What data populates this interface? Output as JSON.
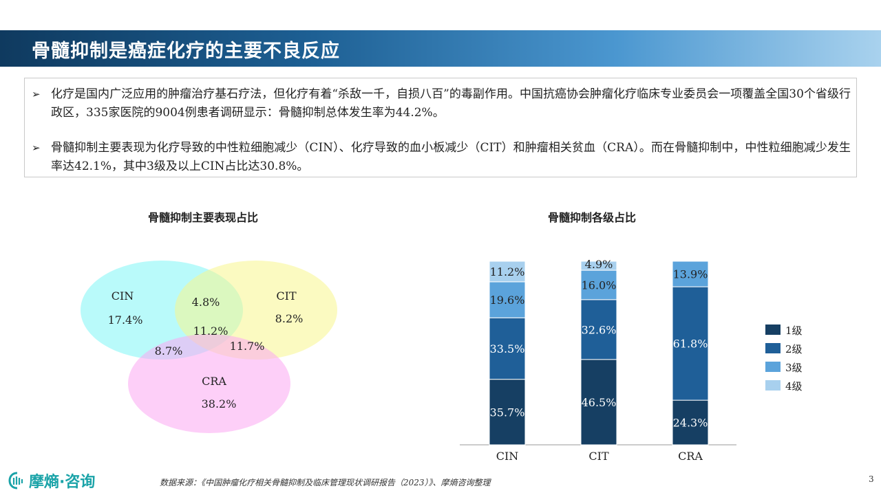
{
  "header": {
    "title": "骨髓抑制是癌症化疗的主要不良反应"
  },
  "bullets": [
    "化疗是国内广泛应用的肿瘤治疗基石疗法，但化疗有着“杀敌一千，自损八百”的毒副作用。中国抗癌协会肿瘤化疗临床专业委员会一项覆盖全国30个省级行政区，335家医院的9004例患者调研显示：骨髓抑制总体发生率为44.2%。",
    "骨髓抑制主要表现为化疗导致的中性粒细胞减少（CIN）、化疗导致的血小板减少（CIT）和肿瘤相关贫血（CRA）。而在骨髓抑制中，中性粒细胞减少发生率达42.1%，其中3级及以上CIN占比达30.8%。"
  ],
  "bullet_marker": "➢",
  "chart_data": [
    {
      "type": "venn",
      "title": "骨髓抑制主要表现占比",
      "sets": [
        {
          "name": "CIN",
          "value": "17.4%",
          "color": "#7ff5f5"
        },
        {
          "name": "CIT",
          "value": "8.2%",
          "color": "#f7f58e"
        },
        {
          "name": "CRA",
          "value": "38.2%",
          "color": "#fca8f2"
        }
      ],
      "overlaps": [
        {
          "sets": [
            "CIN",
            "CIT"
          ],
          "value": "4.8%"
        },
        {
          "sets": [
            "CIN",
            "CRA"
          ],
          "value": "8.7%"
        },
        {
          "sets": [
            "CIT",
            "CRA"
          ],
          "value": "11.7%"
        },
        {
          "sets": [
            "CIN",
            "CIT",
            "CRA"
          ],
          "value": "11.2%"
        }
      ]
    },
    {
      "type": "stacked-bar",
      "title": "骨髓抑制各级占比",
      "categories": [
        "CIN",
        "CIT",
        "CRA"
      ],
      "ylim": [
        0,
        100
      ],
      "legend_position": "right",
      "series": [
        {
          "name": "1级",
          "color": "#163f63",
          "values": [
            35.7,
            46.5,
            24.3
          ]
        },
        {
          "name": "2级",
          "color": "#1f5f98",
          "values": [
            33.5,
            32.6,
            61.8
          ]
        },
        {
          "name": "3级",
          "color": "#5ba3db",
          "values": [
            19.6,
            16.0,
            13.9
          ]
        },
        {
          "name": "4级",
          "color": "#a8d0ee",
          "values": [
            11.2,
            4.9,
            null
          ]
        }
      ],
      "labels": [
        [
          "35.7%",
          "46.5%",
          "24.3%"
        ],
        [
          "33.5%",
          "32.6%",
          "61.8%"
        ],
        [
          "19.6%",
          "16.0%",
          "13.9%"
        ],
        [
          "11.2%",
          "4.9%",
          ""
        ]
      ]
    }
  ],
  "footer": {
    "source": "数据来源：《中国肿瘤化疗相关骨髓抑制及临床管理现状调研报告（2023）》、摩熵咨询整理",
    "page": "3",
    "brand": "摩熵·咨询"
  }
}
